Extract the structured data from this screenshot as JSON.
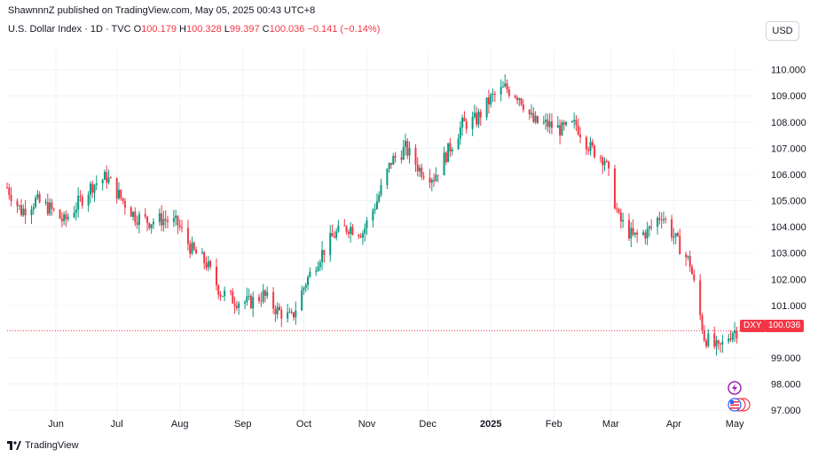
{
  "publisher_line": "ShawnnnZ published on TradingView.com, May 05, 2025 00:43 UTC+8",
  "legend": {
    "symbol": "U.S. Dollar Index · 1D · TVC",
    "o_label": "O",
    "o_value": "100.179",
    "h_label": "H",
    "h_value": "100.328",
    "l_label": "L",
    "l_value": "99.397",
    "c_label": "C",
    "c_value": "100.036",
    "change": "−0.141 (−0.14%)"
  },
  "currency_button": "USD",
  "ticker_badge": "DXY",
  "last_price_badge": "100.036",
  "branding": "TradingView",
  "colors": {
    "up": "#089981",
    "down": "#f23645",
    "grid": "#f0f3fa"
  },
  "icons": [
    "lightning-event-icon",
    "us-flag-event-icon"
  ],
  "chart_data": {
    "type": "candlestick",
    "symbol": "DXY",
    "y_ticks": [
      "110.000",
      "109.000",
      "108.000",
      "107.000",
      "106.000",
      "105.000",
      "104.000",
      "103.000",
      "102.000",
      "101.000",
      "99.000",
      "98.000",
      "97.000"
    ],
    "y_tick_values": [
      110,
      109,
      108,
      107,
      106,
      105,
      104,
      103,
      102,
      101,
      99,
      98,
      97
    ],
    "x_ticks": [
      "Jun",
      "Jul",
      "Aug",
      "Sep",
      "Oct",
      "Nov",
      "Dec",
      "2025",
      "Feb",
      "Mar",
      "Apr",
      "May"
    ],
    "x_tick_dates": [
      "2024-06-01",
      "2024-07-01",
      "2024-08-01",
      "2024-09-01",
      "2024-10-01",
      "2024-11-01",
      "2024-12-01",
      "2025-01-01",
      "2025-02-01",
      "2025-03-01",
      "2025-04-01",
      "2025-05-01"
    ],
    "x_range": [
      "2024-05-08",
      "2025-05-04"
    ],
    "y_range": [
      96.6,
      110.8
    ],
    "last_close": 100.036,
    "closes": [
      {
        "d": "2024-05-08",
        "c": 105.5
      },
      {
        "d": "2024-05-15",
        "c": 104.6
      },
      {
        "d": "2024-05-22",
        "c": 105.0
      },
      {
        "d": "2024-05-29",
        "c": 104.7
      },
      {
        "d": "2024-06-05",
        "c": 104.2
      },
      {
        "d": "2024-06-12",
        "c": 104.9
      },
      {
        "d": "2024-06-19",
        "c": 105.6
      },
      {
        "d": "2024-06-26",
        "c": 105.9
      },
      {
        "d": "2024-07-03",
        "c": 105.1
      },
      {
        "d": "2024-07-10",
        "c": 104.4
      },
      {
        "d": "2024-07-17",
        "c": 104.2
      },
      {
        "d": "2024-07-24",
        "c": 104.3
      },
      {
        "d": "2024-07-31",
        "c": 104.1
      },
      {
        "d": "2024-08-07",
        "c": 103.1
      },
      {
        "d": "2024-08-14",
        "c": 102.6
      },
      {
        "d": "2024-08-21",
        "c": 101.5
      },
      {
        "d": "2024-08-28",
        "c": 101.2
      },
      {
        "d": "2024-09-04",
        "c": 101.1
      },
      {
        "d": "2024-09-11",
        "c": 101.4
      },
      {
        "d": "2024-09-18",
        "c": 100.8
      },
      {
        "d": "2024-09-25",
        "c": 100.5
      },
      {
        "d": "2024-10-02",
        "c": 101.9
      },
      {
        "d": "2024-10-09",
        "c": 102.9
      },
      {
        "d": "2024-10-16",
        "c": 103.7
      },
      {
        "d": "2024-10-23",
        "c": 104.0
      },
      {
        "d": "2024-10-30",
        "c": 103.8
      },
      {
        "d": "2024-11-06",
        "c": 105.0
      },
      {
        "d": "2024-11-13",
        "c": 106.5
      },
      {
        "d": "2024-11-20",
        "c": 107.0
      },
      {
        "d": "2024-11-27",
        "c": 106.2
      },
      {
        "d": "2024-12-04",
        "c": 105.9
      },
      {
        "d": "2024-12-11",
        "c": 106.9
      },
      {
        "d": "2024-12-18",
        "c": 107.9
      },
      {
        "d": "2024-12-25",
        "c": 108.1
      },
      {
        "d": "2025-01-01",
        "c": 108.9
      },
      {
        "d": "2025-01-08",
        "c": 109.3
      },
      {
        "d": "2025-01-15",
        "c": 109.0
      },
      {
        "d": "2025-01-22",
        "c": 108.0
      },
      {
        "d": "2025-01-29",
        "c": 107.9
      },
      {
        "d": "2025-02-05",
        "c": 107.7
      },
      {
        "d": "2025-02-12",
        "c": 107.9
      },
      {
        "d": "2025-02-19",
        "c": 107.0
      },
      {
        "d": "2025-02-26",
        "c": 106.6
      },
      {
        "d": "2025-03-05",
        "c": 104.3
      },
      {
        "d": "2025-03-12",
        "c": 103.6
      },
      {
        "d": "2025-03-19",
        "c": 103.8
      },
      {
        "d": "2025-03-26",
        "c": 104.5
      },
      {
        "d": "2025-04-02",
        "c": 103.5
      },
      {
        "d": "2025-04-09",
        "c": 102.6
      },
      {
        "d": "2025-04-16",
        "c": 99.8
      },
      {
        "d": "2025-04-23",
        "c": 99.3
      },
      {
        "d": "2025-04-30",
        "c": 100.036
      }
    ]
  }
}
